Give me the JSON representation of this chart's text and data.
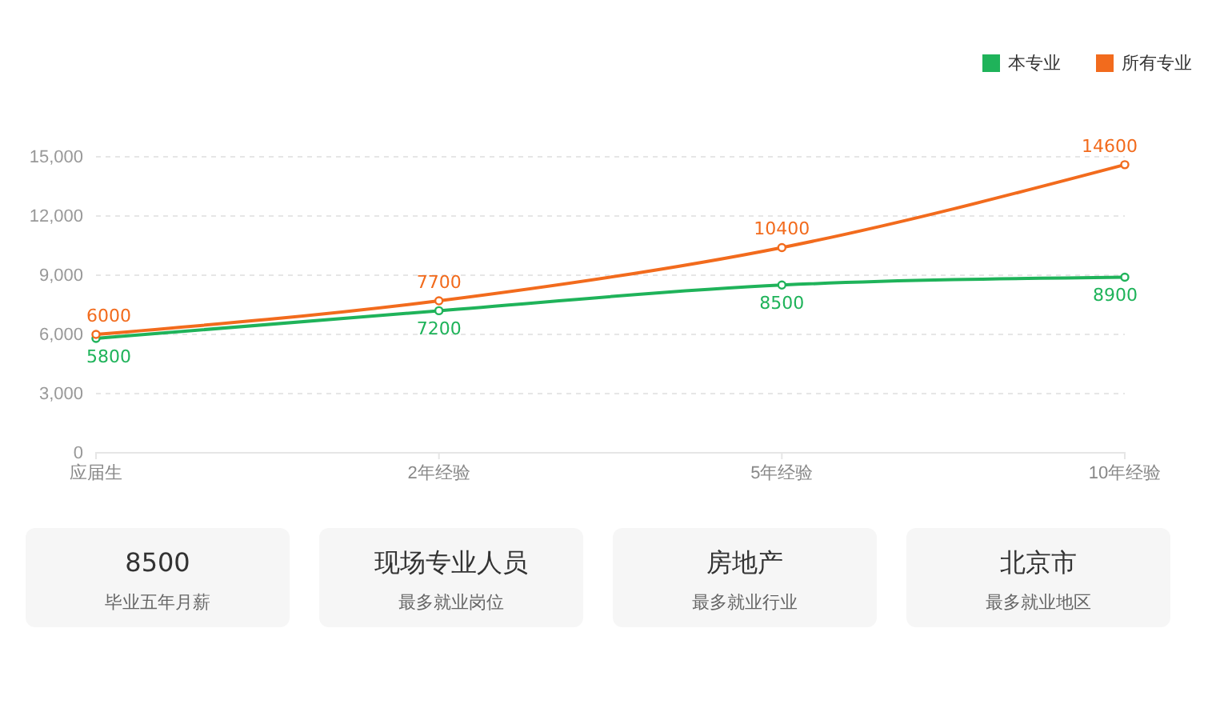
{
  "chart_data": [
    {
      "type": "line",
      "categories": [
        "应届生",
        "2年经验",
        "5年经验",
        "10年经验"
      ],
      "series": [
        {
          "name": "本专业",
          "color": "#1fb35a",
          "values": [
            5800,
            7200,
            8500,
            8900
          ]
        },
        {
          "name": "所有专业",
          "color": "#f26b1d",
          "values": [
            6000,
            7700,
            10400,
            14600
          ]
        }
      ],
      "ylim": [
        0,
        15000
      ],
      "yticks": [
        {
          "value": 0,
          "label": "0"
        },
        {
          "value": 3000,
          "label": "3,000"
        },
        {
          "value": 6000,
          "label": "6,000"
        },
        {
          "value": 9000,
          "label": "9,000"
        },
        {
          "value": 12000,
          "label": "12,000"
        },
        {
          "value": 15000,
          "label": "15,000"
        }
      ],
      "grid": "y",
      "legend": "top right",
      "data_labels": true,
      "marker": "circle",
      "line_style": "solid"
    },
    {
      "type": "other",
      "annotations": [
        "8500",
        "毕业五年月薪",
        "现场专业人员",
        "最多就业岗位",
        "房地产",
        "最多就业行业",
        "北京市",
        "最多就业地区"
      ]
    }
  ]
}
